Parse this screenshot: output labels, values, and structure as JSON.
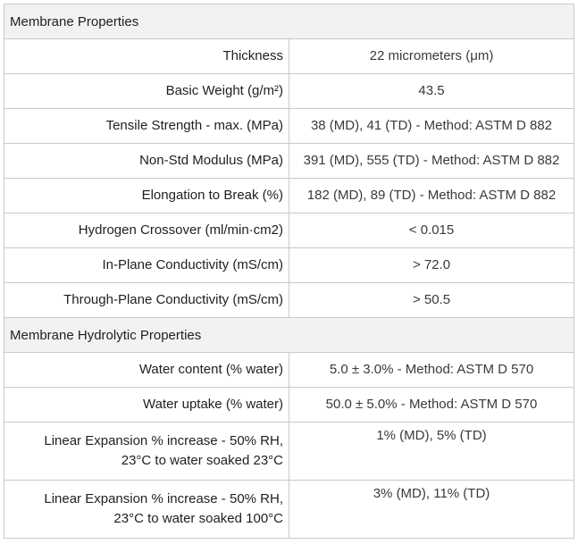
{
  "table": {
    "sections": [
      {
        "title": "Membrane Properties",
        "rows": [
          {
            "label": "Thickness",
            "value": "22 micrometers (μm)"
          },
          {
            "label": "Basic Weight (g/m²)",
            "value": "43.5"
          },
          {
            "label": "Tensile Strength - max. (MPa)",
            "value": "38 (MD), 41 (TD) - Method: ASTM D 882"
          },
          {
            "label": "Non-Std Modulus (MPa)",
            "value": "391 (MD), 555 (TD) - Method: ASTM D 882"
          },
          {
            "label": "Elongation to Break (%)",
            "value": "182 (MD), 89 (TD) - Method: ASTM D 882"
          },
          {
            "label": "Hydrogen Crossover (ml/min·cm2)",
            "value": "< 0.015"
          },
          {
            "label": "In-Plane Conductivity (mS/cm)",
            "value": "> 72.0"
          },
          {
            "label": "Through-Plane Conductivity (mS/cm)",
            "value": "> 50.5"
          }
        ]
      },
      {
        "title": "Membrane Hydrolytic Properties",
        "rows": [
          {
            "label": "Water content (% water)",
            "value": "5.0 ± 3.0% - Method: ASTM D 570"
          },
          {
            "label": "Water uptake (% water)",
            "value": "50.0 ± 5.0% - Method: ASTM D 570"
          },
          {
            "label_line1": "Linear Expansion % increase - 50% RH,",
            "label_line2": "23°C to water soaked 23°C",
            "value": "1% (MD), 5% (TD)"
          },
          {
            "label_line1": "Linear Expansion % increase - 50% RH,",
            "label_line2": "23°C to water soaked 100°C",
            "value": "3% (MD), 11% (TD)"
          }
        ]
      }
    ]
  }
}
